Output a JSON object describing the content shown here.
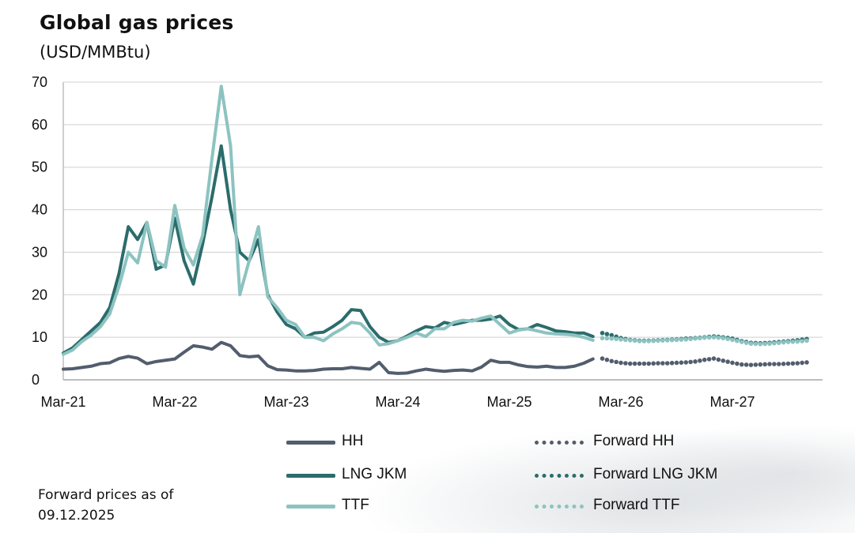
{
  "chart_data": {
    "type": "line",
    "title": "Global gas prices",
    "subtitle": "(USD/MMBtu)",
    "ylim": [
      0,
      70
    ],
    "y_ticks": [
      "0",
      "10",
      "20",
      "30",
      "40",
      "50",
      "60",
      "70"
    ],
    "x_ticks": [
      "Mar-21",
      "Mar-22",
      "Mar-23",
      "Mar-24",
      "Mar-25",
      "Mar-26",
      "Mar-27"
    ],
    "grid": true,
    "legend_position": "bottom",
    "x_historical": [
      "Mar-21",
      "Apr-21",
      "May-21",
      "Jun-21",
      "Jul-21",
      "Aug-21",
      "Sep-21",
      "Oct-21",
      "Nov-21",
      "Dec-21",
      "Jan-22",
      "Feb-22",
      "Mar-22",
      "Apr-22",
      "May-22",
      "Jun-22",
      "Jul-22",
      "Aug-22",
      "Sep-22",
      "Oct-22",
      "Nov-22",
      "Dec-22",
      "Jan-23",
      "Feb-23",
      "Mar-23",
      "Apr-23",
      "May-23",
      "Jun-23",
      "Jul-23",
      "Aug-23",
      "Sep-23",
      "Oct-23",
      "Nov-23",
      "Dec-23",
      "Jan-24",
      "Feb-24",
      "Mar-24",
      "Apr-24",
      "May-24",
      "Jun-24",
      "Jul-24",
      "Aug-24",
      "Sep-24",
      "Oct-24",
      "Nov-24",
      "Dec-24",
      "Jan-25",
      "Feb-25",
      "Mar-25",
      "Apr-25",
      "May-25",
      "Jun-25",
      "Jul-25",
      "Aug-25",
      "Sep-25",
      "Oct-25",
      "Nov-25",
      "Dec-25"
    ],
    "x_forward": [
      "Jan-26",
      "Feb-26",
      "Mar-26",
      "Apr-26",
      "May-26",
      "Jun-26",
      "Jul-26",
      "Aug-26",
      "Sep-26",
      "Oct-26",
      "Nov-26",
      "Dec-26",
      "Jan-27",
      "Feb-27",
      "Mar-27",
      "Apr-27",
      "May-27",
      "Jun-27",
      "Jul-27",
      "Aug-27",
      "Sep-27",
      "Oct-27",
      "Nov-27"
    ],
    "series": [
      {
        "name": "HH",
        "style": "solid",
        "color": "#525d6d",
        "data": "x_historical",
        "values": [
          2.5,
          2.6,
          2.9,
          3.2,
          3.8,
          4.0,
          5.0,
          5.5,
          5.1,
          3.8,
          4.3,
          4.6,
          4.9,
          6.5,
          8.0,
          7.7,
          7.2,
          8.8,
          8.0,
          5.7,
          5.4,
          5.6,
          3.3,
          2.4,
          2.3,
          2.1,
          2.1,
          2.2,
          2.5,
          2.6,
          2.6,
          2.9,
          2.7,
          2.5,
          4.1,
          1.7,
          1.5,
          1.6,
          2.1,
          2.5,
          2.2,
          2.0,
          2.2,
          2.3,
          2.1,
          3.0,
          4.6,
          4.1,
          4.1,
          3.5,
          3.1,
          3.0,
          3.2,
          2.9,
          2.9,
          3.2,
          3.9,
          4.9
        ]
      },
      {
        "name": "LNG JKM",
        "style": "solid",
        "color": "#2b6c6c",
        "data": "x_historical",
        "values": [
          6.3,
          7.5,
          9.5,
          11.5,
          13.5,
          17,
          25,
          36,
          33,
          37,
          26,
          27,
          38,
          28,
          22.5,
          32,
          43,
          55,
          40,
          30,
          28,
          33,
          20,
          16,
          13,
          12,
          10,
          11,
          11.2,
          12.5,
          14,
          16.5,
          16.3,
          12.5,
          10,
          8.8,
          9.2,
          10.3,
          11.5,
          12.5,
          12.2,
          13.5,
          13,
          13.5,
          14,
          14,
          14.3,
          15,
          13,
          11.8,
          12,
          13,
          12.3,
          11.5,
          11.3,
          11,
          11,
          10.2
        ]
      },
      {
        "name": "TTF",
        "style": "solid",
        "color": "#8cc3c0",
        "data": "x_historical",
        "values": [
          6,
          7,
          9,
          10.5,
          12.5,
          15.5,
          22,
          30,
          27.5,
          37,
          28,
          26.5,
          41,
          31,
          27,
          34,
          52,
          69,
          55,
          20,
          28,
          36,
          19.5,
          17,
          14,
          13,
          10,
          10,
          9.2,
          10.8,
          12,
          13.5,
          13.2,
          11,
          8.2,
          8.5,
          9.2,
          10,
          11,
          10.2,
          12,
          12,
          13.5,
          14,
          13.8,
          14.5,
          15,
          13,
          11,
          11.7,
          12,
          11.5,
          11,
          10.8,
          10.7,
          10.5,
          10,
          9.3
        ]
      },
      {
        "name": "Forward HH",
        "style": "dotted",
        "color": "#525d6d",
        "data": "x_forward",
        "values": [
          5.0,
          4.4,
          4.0,
          3.8,
          3.8,
          3.8,
          3.9,
          3.9,
          4.0,
          4.1,
          4.3,
          4.7,
          5.0,
          4.5,
          4.0,
          3.6,
          3.5,
          3.6,
          3.7,
          3.7,
          3.8,
          3.9,
          4.1
        ]
      },
      {
        "name": "Forward LNG JKM",
        "style": "dotted",
        "color": "#2b6c6c",
        "data": "x_forward",
        "values": [
          11,
          10.5,
          9.8,
          9.4,
          9.2,
          9.2,
          9.3,
          9.4,
          9.5,
          9.7,
          9.8,
          10,
          10.2,
          10,
          9.7,
          9.1,
          8.7,
          8.6,
          8.7,
          8.9,
          9.1,
          9.3,
          9.6
        ]
      },
      {
        "name": "Forward TTF",
        "style": "dotted",
        "color": "#8cc3c0",
        "data": "x_forward",
        "values": [
          9.8,
          9.7,
          9.5,
          9.3,
          9.1,
          9.1,
          9.2,
          9.3,
          9.4,
          9.5,
          9.7,
          9.9,
          10,
          9.8,
          9.4,
          8.9,
          8.5,
          8.4,
          8.5,
          8.7,
          8.9,
          9.0,
          9.2
        ]
      }
    ]
  },
  "footnote": {
    "line1": "Forward prices as of",
    "line2": "09.12.2025"
  }
}
